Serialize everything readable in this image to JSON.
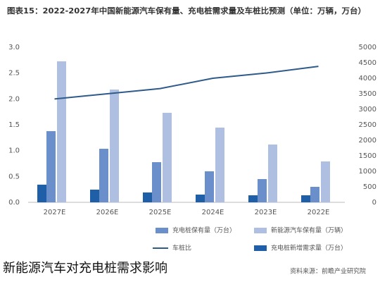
{
  "chart_data": {
    "type": "bar",
    "title": "图表15：2022-2027年中国新能源汽车保有量、充电桩需求量及车桩比预测（单位：万辆，万台）",
    "categories": [
      "2027E",
      "2026E",
      "2025E",
      "2024E",
      "2023E",
      "2022E"
    ],
    "series": [
      {
        "name": "充电桩新增需求量（万台）",
        "color": "#1f5fa8",
        "axis": "y2",
        "kind": "bar",
        "values": [
          570,
          410,
          318,
          250,
          227,
          227
        ]
      },
      {
        "name": "充电桩保有量（万台）",
        "color": "#6b8fcb",
        "axis": "y2",
        "kind": "bar",
        "values": [
          2295,
          1727,
          1295,
          1000,
          750,
          500
        ]
      },
      {
        "name": "新能源汽车保有量（万辆）",
        "color": "#aebfe2",
        "axis": "y2",
        "kind": "bar",
        "values": [
          4545,
          3636,
          2886,
          2409,
          1864,
          1318
        ]
      },
      {
        "name": "车桩比",
        "color": "#2e5b8a",
        "axis": "y",
        "kind": "line",
        "values": [
          2.0,
          2.1,
          2.2,
          2.4,
          2.5,
          2.63
        ]
      }
    ],
    "ylim": [
      0,
      3
    ],
    "yticks": [
      {
        "value": 0,
        "label": "0.0"
      },
      0.5,
      {
        "value": 1,
        "label": "1.0"
      },
      1.5,
      {
        "value": 2,
        "label": "2.0"
      },
      2.5,
      {
        "value": 3,
        "label": "3.0"
      }
    ],
    "y2lim": [
      0,
      5000
    ],
    "y2ticks": [
      0,
      500,
      1000,
      1500,
      2000,
      2500,
      3000,
      3500,
      4000,
      4500,
      5000
    ],
    "source": "资料来源：前瞻产业研究院",
    "caption": "新能源汽车对充电桩需求影响"
  }
}
